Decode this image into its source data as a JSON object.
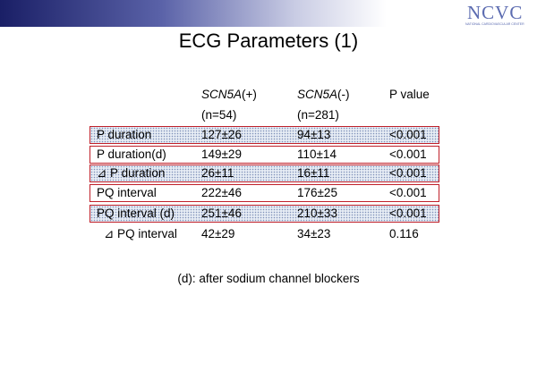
{
  "logo": {
    "text": "NCVC",
    "subtitle": "NATIONAL CARDIOVASCULAR CENTER"
  },
  "title": "ECG Parameters (1)",
  "table": {
    "columns": [
      {
        "name": "SCN5A",
        "suffix": "(+)",
        "n": "(n=54)"
      },
      {
        "name": "SCN5A",
        "suffix": "(-)",
        "n": "(n=281)"
      },
      {
        "name": "P value"
      }
    ],
    "rows": [
      [
        "P duration",
        "127±26",
        "94±13",
        "<0.001"
      ],
      [
        "P duration(d)",
        "149±29",
        "110±14",
        "<0.001"
      ],
      [
        "⊿ P duration",
        "26±11",
        "16±11",
        "<0.001"
      ],
      [
        "PQ interval",
        "222±46",
        "176±25",
        "<0.001"
      ],
      [
        "PQ interval (d)",
        "251±46",
        "210±33",
        "<0.001"
      ],
      [
        "⊿ PQ interval",
        "42±29",
        "34±23",
        "0.116"
      ]
    ]
  },
  "footnote": "(d): after sodium channel blockers"
}
